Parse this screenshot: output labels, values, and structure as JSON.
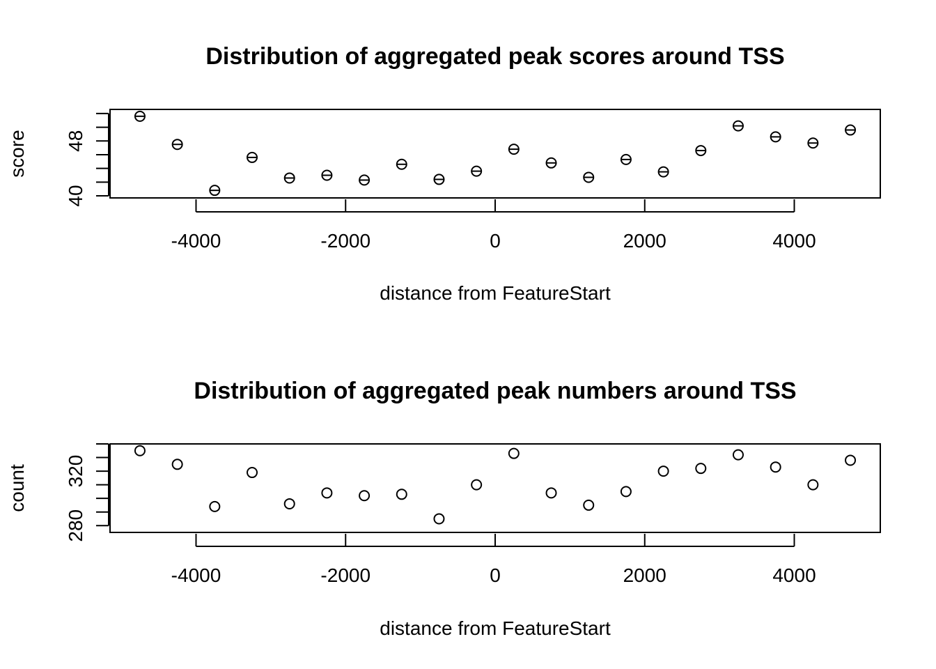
{
  "chart_data": [
    {
      "type": "scatter",
      "title": "Distribution of aggregated peak scores around TSS",
      "xlabel": "distance from FeatureStart",
      "ylabel": "score",
      "xlim": [
        -5150,
        5150
      ],
      "ylim": [
        39.7,
        52.6
      ],
      "xticks": [
        -4000,
        -2000,
        0,
        2000,
        4000
      ],
      "yticks": [
        40,
        42,
        44,
        46,
        48,
        50,
        52
      ],
      "ytick_labels": [
        "40",
        "",
        "",
        "",
        "48",
        "",
        ""
      ],
      "marker": "circle-with-bar",
      "x": [
        -4750,
        -4250,
        -3750,
        -3250,
        -2750,
        -2250,
        -1750,
        -1250,
        -750,
        -250,
        250,
        750,
        1250,
        1750,
        2250,
        2750,
        3250,
        3750,
        4250,
        4750
      ],
      "y": [
        51.6,
        47.5,
        40.8,
        45.6,
        42.6,
        43.0,
        42.3,
        44.6,
        42.4,
        43.6,
        46.8,
        44.8,
        42.7,
        45.3,
        43.5,
        46.6,
        50.2,
        48.6,
        47.7,
        49.6
      ]
    },
    {
      "type": "scatter",
      "title": "Distribution of aggregated peak numbers around TSS",
      "xlabel": "distance from FeatureStart",
      "ylabel": "count",
      "xlim": [
        -5150,
        5150
      ],
      "ylim": [
        275,
        340
      ],
      "xticks": [
        -4000,
        -2000,
        0,
        2000,
        4000
      ],
      "yticks": [
        280,
        290,
        300,
        310,
        320,
        330,
        340
      ],
      "ytick_labels": [
        "280",
        "",
        "",
        "",
        "320",
        "",
        ""
      ],
      "marker": "circle",
      "x": [
        -4750,
        -4250,
        -3750,
        -3250,
        -2750,
        -2250,
        -1750,
        -1250,
        -750,
        -250,
        250,
        750,
        1250,
        1750,
        2250,
        2750,
        3250,
        3750,
        4250,
        4750
      ],
      "y": [
        335,
        325,
        294,
        319,
        296,
        304,
        302,
        303,
        285,
        310,
        333,
        304,
        295,
        305,
        320,
        322,
        332,
        323,
        310,
        328
      ]
    }
  ]
}
